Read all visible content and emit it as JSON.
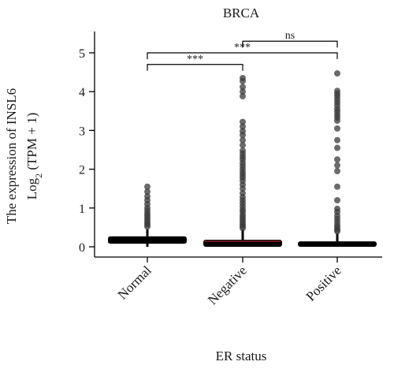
{
  "chart_data": {
    "type": "box",
    "title": "BRCA",
    "xlabel": "ER status",
    "ylabel": {
      "line1": "The expression of INSL6",
      "line2_prefix": "Log",
      "line2_sub": "2",
      "line2_suffix": " (TPM + 1)"
    },
    "ylim": [
      0,
      5.5
    ],
    "yticks": [
      0,
      1,
      2,
      3,
      4,
      5
    ],
    "categories": [
      "Normal",
      "Negative",
      "Positive"
    ],
    "boxes": [
      {
        "name": "Normal",
        "q1": 0.08,
        "median": 0.17,
        "q3": 0.27,
        "whisker_low": 0.0,
        "whisker_high": 0.45,
        "outliers": [
          1.55,
          1.42,
          1.3,
          1.2,
          1.1,
          1.0,
          0.93,
          0.86,
          0.8,
          0.74,
          0.68,
          0.62,
          0.57,
          0.52
        ]
      },
      {
        "name": "Negative",
        "q1": 0.0,
        "median": 0.14,
        "q3": 0.18,
        "whisker_low": 0.0,
        "whisker_high": 0.44,
        "outliers": [
          4.35,
          4.27,
          4.12,
          4.0,
          3.88,
          3.22,
          3.1,
          2.98,
          2.88,
          2.75,
          2.62,
          2.48,
          2.4,
          2.32,
          2.25,
          2.16,
          2.08,
          2.0,
          1.92,
          1.85,
          1.78,
          1.7,
          1.6,
          1.5,
          1.38,
          1.28,
          1.2,
          1.12,
          1.04,
          0.96,
          0.9,
          0.82,
          0.76,
          0.7,
          0.64,
          0.58,
          0.53,
          0.48
        ]
      },
      {
        "name": "Positive",
        "q1": 0.0,
        "median": 0.07,
        "q3": 0.14,
        "whisker_low": 0.0,
        "whisker_high": 0.35,
        "outliers": [
          4.47,
          4.02,
          3.95,
          3.88,
          3.8,
          3.72,
          3.64,
          3.55,
          3.48,
          3.4,
          3.33,
          3.25,
          3.05,
          2.75,
          2.55,
          2.25,
          2.1,
          1.95,
          1.55,
          1.2,
          0.98,
          0.9,
          0.8,
          0.72,
          0.64,
          0.56,
          0.5,
          0.44,
          0.4
        ]
      }
    ],
    "significance": [
      {
        "from": "Normal",
        "to": "Negative",
        "y": 4.7,
        "label": "***"
      },
      {
        "from": "Normal",
        "to": "Positive",
        "y": 5.0,
        "label": "***"
      },
      {
        "from": "Negative",
        "to": "Positive",
        "y": 5.3,
        "label": "ns"
      }
    ],
    "colors": {
      "box": "#000000",
      "point": "#3a3a3a",
      "median_line": "#8b1a1a"
    },
    "grid": false,
    "legend": "none"
  }
}
